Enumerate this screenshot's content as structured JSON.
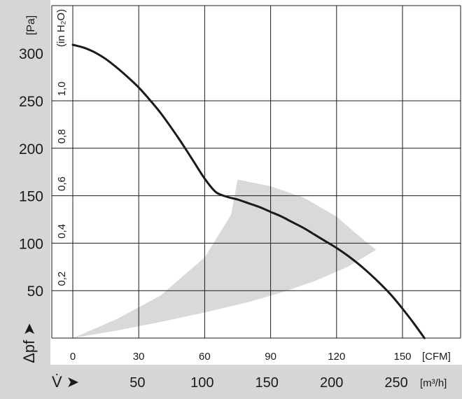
{
  "chart_data": {
    "type": "line",
    "title": "",
    "series": [
      {
        "x": [
          0,
          5,
          10,
          15,
          20,
          25,
          30,
          35,
          40,
          45,
          50,
          55,
          60,
          65,
          70,
          75,
          80,
          85,
          90,
          95,
          100,
          105,
          110,
          115,
          120,
          125,
          130,
          135,
          140,
          145,
          150,
          155,
          160
        ],
        "y": [
          309,
          306,
          301,
          294,
          285,
          275,
          264,
          251,
          237,
          221,
          204,
          186,
          168,
          154,
          149,
          146,
          142,
          138,
          133,
          128,
          122,
          116,
          109,
          102,
          95,
          87,
          78,
          68,
          57,
          45,
          31,
          16,
          0
        ]
      }
    ],
    "operating_region": {
      "upper": {
        "x": [
          0,
          20,
          40,
          60,
          72,
          75
        ],
        "y": [
          0,
          20,
          45,
          85,
          130,
          167
        ]
      },
      "right": {
        "x": [
          75,
          90,
          105,
          120,
          130,
          138
        ],
        "y": [
          167,
          160,
          148,
          128,
          108,
          93
        ]
      },
      "lower": {
        "x": [
          138,
          125,
          110,
          95,
          80,
          60,
          40,
          20,
          0
        ],
        "y": [
          93,
          75,
          60,
          48,
          38,
          27,
          17,
          8,
          0
        ]
      }
    },
    "x_axis_cfm": {
      "unit_label": "[CFM]",
      "ticks": [
        0,
        30,
        60,
        90,
        120,
        150
      ],
      "range": [
        0,
        165
      ]
    },
    "x_axis_m3h": {
      "label": "V̇ ➤",
      "unit_label": "[m³/h]",
      "ticks": [
        50,
        100,
        150,
        200,
        250
      ]
    },
    "y_axis_pa": {
      "label": "Δpf ➤",
      "unit_label": "[Pa]",
      "ticks": [
        50,
        100,
        150,
        200,
        250,
        300
      ],
      "range": [
        0,
        335
      ]
    },
    "y_axis_inh2o": {
      "unit_label": "(in H₂O)",
      "ticks": [
        "0,2",
        "0,4",
        "0,6",
        "0,8",
        "1,0"
      ]
    },
    "grid": true,
    "colors": {
      "curve": "#1a1a1a",
      "region": "#d9d9d9",
      "band": "#d6d6d6",
      "grid": "#1a1a1a"
    }
  }
}
